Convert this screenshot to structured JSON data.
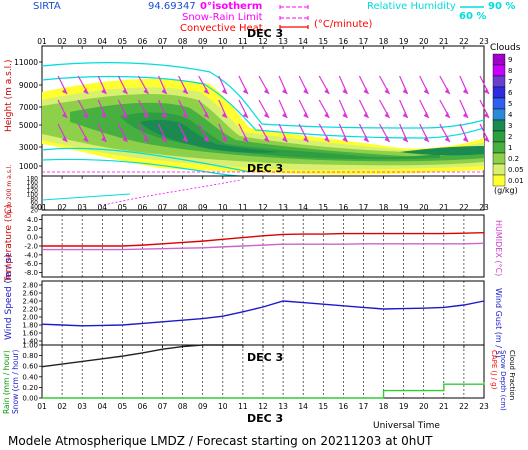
{
  "header": {
    "station": "SIRTA",
    "coords": "94.69347",
    "date_label": "DEC  3",
    "legend": [
      {
        "label": "0°isotherm",
        "color": "#ff00ff",
        "style": "dashed"
      },
      {
        "label": "Snow-Rain Limit",
        "color": "#ff00ff",
        "style": "dashed"
      },
      {
        "label": "Convective Heat.",
        "color": "#ff0000",
        "style": "solid"
      }
    ],
    "heat_unit": "(°C/minute)",
    "rh_label": "Relative Humidity",
    "rh_values": [
      "90 %",
      "60 %"
    ],
    "rh_color": "#00e5e5"
  },
  "footer": {
    "caption": "Modele Atmospherique LMDZ / Forecast starting on 20211203 at 0hUT",
    "universal_time": "Universal Time",
    "date_label": "DEC  3"
  },
  "hour_ticks": [
    "01",
    "02",
    "03",
    "04",
    "05",
    "06",
    "07",
    "08",
    "09",
    "10",
    "11",
    "12",
    "13",
    "14",
    "15",
    "16",
    "17",
    "18",
    "19",
    "20",
    "21",
    "22",
    "23"
  ],
  "chart_data": [
    {
      "panel": "clouds",
      "type": "heatmap",
      "ylabel": "Height  (m a.s.l.)",
      "ylabel2": "Up to 200 m a.s.l.",
      "yticks_upper": [
        "11000",
        "9000",
        "7000",
        "5000",
        "3000",
        "1000"
      ],
      "yticks_lower": [
        "180",
        "160",
        "140",
        "120",
        "100",
        "80",
        "60",
        "40",
        "20"
      ],
      "colorbar_title": "Clouds",
      "colorbar_unit": "(g/kg)",
      "colorbar_ticks": [
        "9",
        "8",
        "7",
        "6",
        "5",
        "4",
        "3",
        "2",
        "1",
        "0.2",
        "0.05",
        "0.01"
      ],
      "colorbar_colors": [
        "#a000c8",
        "#c800ff",
        "#6a3fd0",
        "#2e2be0",
        "#3060f0",
        "#2a8ad8",
        "#1a8a50",
        "#2e9e40",
        "#48b040",
        "#8fd04a",
        "#d8f070",
        "#ffff30"
      ]
    },
    {
      "panel": "temperature",
      "type": "line",
      "ylabel": "Temperature (°C)",
      "ylabel2": "HUMIDEX (°C)",
      "yticks": [
        "4.0",
        "2.0",
        "0.0",
        "-2.0",
        "-4.0",
        "-6.0",
        "-8.0"
      ],
      "ylim": [
        -9,
        5
      ],
      "series": [
        {
          "color": "#dd0000",
          "values": [
            -2.0,
            -2.0,
            -2.0,
            -2.0,
            -2.0,
            -1.8,
            -1.5,
            -1.2,
            -0.9,
            -0.5,
            -0.1,
            0.3,
            0.6,
            0.7,
            0.7,
            0.8,
            0.8,
            0.8,
            0.8,
            0.8,
            0.8,
            0.9,
            1.0
          ]
        },
        {
          "color": "#cc66cc",
          "values": [
            -2.8,
            -2.8,
            -2.8,
            -2.8,
            -2.8,
            -2.7,
            -2.6,
            -2.5,
            -2.4,
            -2.2,
            -2.0,
            -1.8,
            -1.6,
            -1.6,
            -1.6,
            -1.6,
            -1.5,
            -1.5,
            -1.5,
            -1.5,
            -1.5,
            -1.5,
            -1.4
          ]
        }
      ]
    },
    {
      "panel": "wind",
      "type": "line",
      "ylabel": "Wind Speed (m / s)",
      "ylabel2": "Wind Gust (m / s)",
      "yticks": [
        "2.80",
        "2.60",
        "2.40",
        "2.20",
        "2.00",
        "1.80",
        "1.60",
        "1.40"
      ],
      "ylim": [
        1.3,
        2.9
      ],
      "series": [
        {
          "color": "#1a1acc",
          "values": [
            1.82,
            1.8,
            1.78,
            1.79,
            1.8,
            1.84,
            1.88,
            1.92,
            1.96,
            2.02,
            2.13,
            2.25,
            2.4,
            2.36,
            2.32,
            2.28,
            2.24,
            2.2,
            2.21,
            2.22,
            2.24,
            2.3,
            2.4
          ]
        }
      ]
    },
    {
      "panel": "precipitation",
      "type": "line",
      "ylabel": "Rain (mm / hour)",
      "ylabel2": "Snow (cm / hour)",
      "ylabel3": "CAPE (J / g)",
      "ylabel4": "Snow Depth (cm)",
      "ylabel5": "Cloud Fraction",
      "yticks": [
        "1.00",
        "0.80",
        "0.60",
        "0.40",
        "0.20",
        "0.00"
      ],
      "ylim": [
        0,
        1.0
      ],
      "series": [
        {
          "color": "#222222",
          "values": [
            0.59,
            0.64,
            0.69,
            0.74,
            0.79,
            0.85,
            0.92,
            0.97,
            1.0,
            1.0,
            1.0
          ]
        },
        {
          "color": "#33cc33",
          "step": true,
          "values": [
            0,
            0,
            0,
            0,
            0,
            0,
            0,
            0,
            0,
            0,
            0,
            0,
            0,
            0,
            0,
            0,
            0,
            0.14,
            0.14,
            0.14,
            0.26,
            0.26,
            0.3
          ]
        }
      ]
    }
  ]
}
